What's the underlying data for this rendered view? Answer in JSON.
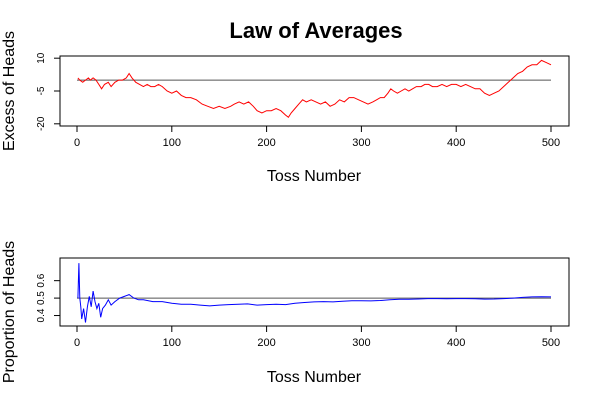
{
  "title": "Law of Averages",
  "chart_data": [
    {
      "type": "line",
      "ylabel": "Excess of Heads",
      "xlabel": "Toss Number",
      "xlim": [
        0,
        500
      ],
      "ylim": [
        -21,
        11
      ],
      "x_ticks": [
        0,
        100,
        200,
        300,
        400,
        500
      ],
      "y_ticks": [
        -20,
        -5,
        10
      ],
      "reference_line": 0,
      "reference_color": "#555555",
      "series_color": "#ff0000",
      "series_points": [
        [
          1,
          1
        ],
        [
          3,
          0
        ],
        [
          6,
          -1
        ],
        [
          9,
          0
        ],
        [
          12,
          1
        ],
        [
          14,
          0
        ],
        [
          17,
          1
        ],
        [
          20,
          0
        ],
        [
          23,
          -2
        ],
        [
          26,
          -4
        ],
        [
          29,
          -2
        ],
        [
          33,
          -1
        ],
        [
          36,
          -3
        ],
        [
          40,
          -1
        ],
        [
          44,
          0
        ],
        [
          48,
          0
        ],
        [
          52,
          1
        ],
        [
          55,
          3
        ],
        [
          58,
          1
        ],
        [
          62,
          -1
        ],
        [
          66,
          -2
        ],
        [
          70,
          -3
        ],
        [
          74,
          -2
        ],
        [
          78,
          -3
        ],
        [
          82,
          -3
        ],
        [
          86,
          -2
        ],
        [
          90,
          -3
        ],
        [
          95,
          -5
        ],
        [
          100,
          -6
        ],
        [
          105,
          -5
        ],
        [
          110,
          -7
        ],
        [
          115,
          -8
        ],
        [
          120,
          -8
        ],
        [
          126,
          -9
        ],
        [
          132,
          -11
        ],
        [
          138,
          -12
        ],
        [
          144,
          -13
        ],
        [
          150,
          -12
        ],
        [
          156,
          -13
        ],
        [
          162,
          -12
        ],
        [
          166,
          -11
        ],
        [
          171,
          -10
        ],
        [
          176,
          -11
        ],
        [
          181,
          -10
        ],
        [
          186,
          -12
        ],
        [
          190,
          -14
        ],
        [
          195,
          -15
        ],
        [
          200,
          -14
        ],
        [
          205,
          -14
        ],
        [
          210,
          -13
        ],
        [
          215,
          -14
        ],
        [
          220,
          -16
        ],
        [
          223,
          -17
        ],
        [
          226,
          -15
        ],
        [
          230,
          -13
        ],
        [
          234,
          -11
        ],
        [
          238,
          -9
        ],
        [
          242,
          -10
        ],
        [
          247,
          -9
        ],
        [
          252,
          -10
        ],
        [
          257,
          -11
        ],
        [
          262,
          -10
        ],
        [
          267,
          -12
        ],
        [
          272,
          -11
        ],
        [
          277,
          -9
        ],
        [
          282,
          -10
        ],
        [
          287,
          -8
        ],
        [
          292,
          -8
        ],
        [
          297,
          -9
        ],
        [
          302,
          -10
        ],
        [
          307,
          -11
        ],
        [
          312,
          -10
        ],
        [
          316,
          -9
        ],
        [
          320,
          -8
        ],
        [
          324,
          -8
        ],
        [
          328,
          -6
        ],
        [
          331,
          -4
        ],
        [
          334,
          -5
        ],
        [
          338,
          -6
        ],
        [
          342,
          -5
        ],
        [
          346,
          -4
        ],
        [
          350,
          -5
        ],
        [
          354,
          -4
        ],
        [
          358,
          -3
        ],
        [
          363,
          -3
        ],
        [
          367,
          -2
        ],
        [
          371,
          -2
        ],
        [
          375,
          -3
        ],
        [
          380,
          -3
        ],
        [
          385,
          -2
        ],
        [
          390,
          -3
        ],
        [
          395,
          -2
        ],
        [
          400,
          -2
        ],
        [
          405,
          -3
        ],
        [
          410,
          -2
        ],
        [
          415,
          -3
        ],
        [
          420,
          -4
        ],
        [
          425,
          -4
        ],
        [
          430,
          -6
        ],
        [
          435,
          -7
        ],
        [
          440,
          -6
        ],
        [
          445,
          -5
        ],
        [
          450,
          -3
        ],
        [
          455,
          -1
        ],
        [
          460,
          1
        ],
        [
          465,
          3
        ],
        [
          470,
          4
        ],
        [
          475,
          6
        ],
        [
          480,
          7
        ],
        [
          485,
          7
        ],
        [
          490,
          9
        ],
        [
          495,
          8
        ],
        [
          500,
          7
        ]
      ]
    },
    {
      "type": "line",
      "ylabel": "Proportion of Heads",
      "xlabel": "Toss Number",
      "xlim": [
        0,
        500
      ],
      "ylim": [
        0.34,
        0.73
      ],
      "x_ticks": [
        0,
        100,
        200,
        300,
        400,
        500
      ],
      "y_ticks": [
        0.4,
        0.5,
        0.6
      ],
      "reference_line": 0.5,
      "reference_color": "#555555",
      "series_color": "#0000ff",
      "series_points": [
        [
          1,
          0.5
        ],
        [
          2,
          0.7
        ],
        [
          3,
          0.5
        ],
        [
          4,
          0.45
        ],
        [
          5,
          0.38
        ],
        [
          7,
          0.44
        ],
        [
          9,
          0.36
        ],
        [
          11,
          0.45
        ],
        [
          13,
          0.51
        ],
        [
          15,
          0.45
        ],
        [
          17,
          0.54
        ],
        [
          19,
          0.48
        ],
        [
          21,
          0.44
        ],
        [
          23,
          0.47
        ],
        [
          25,
          0.39
        ],
        [
          27,
          0.44
        ],
        [
          30,
          0.46
        ],
        [
          33,
          0.49
        ],
        [
          36,
          0.46
        ],
        [
          40,
          0.48
        ],
        [
          45,
          0.5
        ],
        [
          50,
          0.51
        ],
        [
          55,
          0.52
        ],
        [
          60,
          0.5
        ],
        [
          65,
          0.49
        ],
        [
          70,
          0.49
        ],
        [
          80,
          0.48
        ],
        [
          90,
          0.48
        ],
        [
          100,
          0.47
        ],
        [
          110,
          0.465
        ],
        [
          120,
          0.465
        ],
        [
          130,
          0.46
        ],
        [
          140,
          0.455
        ],
        [
          150,
          0.46
        ],
        [
          160,
          0.463
        ],
        [
          170,
          0.465
        ],
        [
          180,
          0.467
        ],
        [
          190,
          0.46
        ],
        [
          200,
          0.463
        ],
        [
          210,
          0.465
        ],
        [
          220,
          0.463
        ],
        [
          230,
          0.47
        ],
        [
          240,
          0.475
        ],
        [
          250,
          0.478
        ],
        [
          260,
          0.48
        ],
        [
          270,
          0.478
        ],
        [
          280,
          0.482
        ],
        [
          290,
          0.485
        ],
        [
          300,
          0.485
        ],
        [
          310,
          0.484
        ],
        [
          320,
          0.486
        ],
        [
          330,
          0.49
        ],
        [
          340,
          0.493
        ],
        [
          350,
          0.493
        ],
        [
          360,
          0.495
        ],
        [
          370,
          0.497
        ],
        [
          380,
          0.497
        ],
        [
          390,
          0.496
        ],
        [
          400,
          0.497
        ],
        [
          410,
          0.497
        ],
        [
          420,
          0.496
        ],
        [
          430,
          0.494
        ],
        [
          440,
          0.495
        ],
        [
          450,
          0.497
        ],
        [
          460,
          0.5
        ],
        [
          470,
          0.504
        ],
        [
          480,
          0.507
        ],
        [
          490,
          0.508
        ],
        [
          500,
          0.507
        ]
      ]
    }
  ]
}
